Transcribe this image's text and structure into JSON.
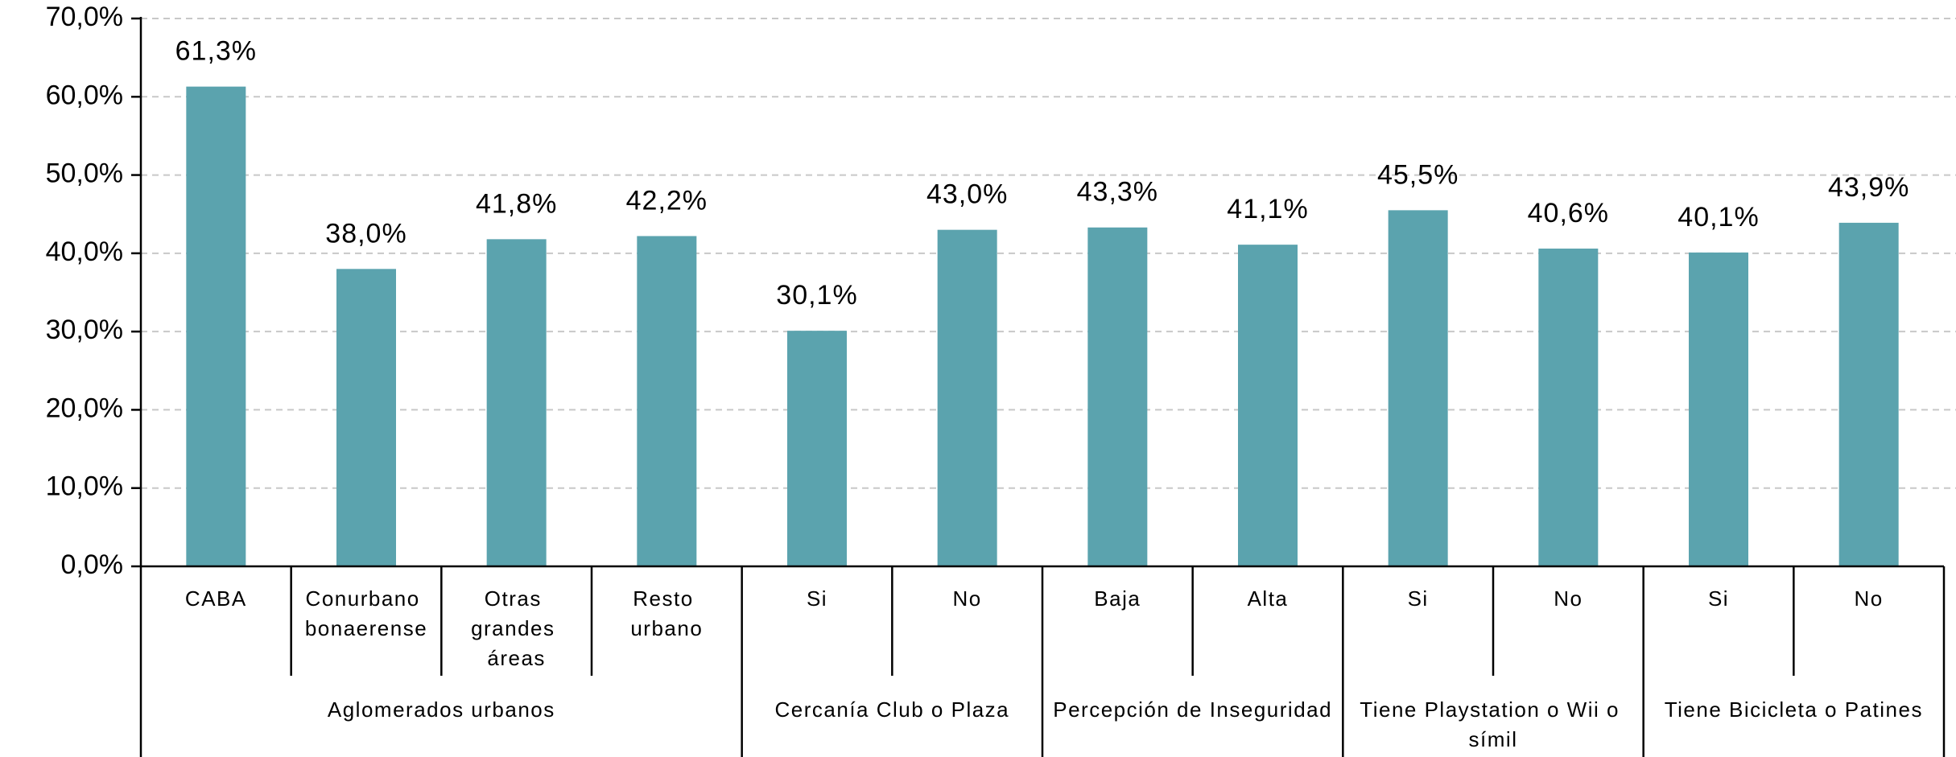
{
  "chart_data": {
    "type": "bar",
    "categories": [
      "CABA",
      "Conurbano bonaerense",
      "Otras grandes áreas",
      "Resto urbano",
      "Si",
      "No",
      "Baja",
      "Alta",
      "Si",
      "No",
      "Si",
      "No"
    ],
    "groups": [
      {
        "label": "Aglomerados urbanos",
        "span": 4
      },
      {
        "label": "Cercanía Club o Plaza",
        "span": 2
      },
      {
        "label": "Percepción de Inseguridad",
        "span": 2
      },
      {
        "label": "Tiene Playstation o Wii o símil",
        "span": 2
      },
      {
        "label": "Tiene Bicicleta o Patines",
        "span": 2
      }
    ],
    "values": [
      61.3,
      38.0,
      41.8,
      42.2,
      30.1,
      43.0,
      43.3,
      41.1,
      45.5,
      40.6,
      40.1,
      43.9
    ],
    "value_labels": [
      "61,3%",
      "38,0%",
      "41,8%",
      "42,2%",
      "30,1%",
      "43,0%",
      "43,3%",
      "41,1%",
      "45,5%",
      "40,6%",
      "40,1%",
      "43,9%"
    ],
    "color": "#5ba3ae",
    "ylim": [
      0,
      70
    ],
    "yticks": [
      {
        "value": 0,
        "label": "0,0%"
      },
      {
        "value": 10,
        "label": "10,0%"
      },
      {
        "value": 20,
        "label": "20,0%"
      },
      {
        "value": 30,
        "label": "30,0%"
      },
      {
        "value": 40,
        "label": "40,0%"
      },
      {
        "value": 50,
        "label": "50,0%"
      },
      {
        "value": 60,
        "label": "60,0%"
      },
      {
        "value": 70,
        "label": "70,0%"
      }
    ],
    "grid": true
  }
}
